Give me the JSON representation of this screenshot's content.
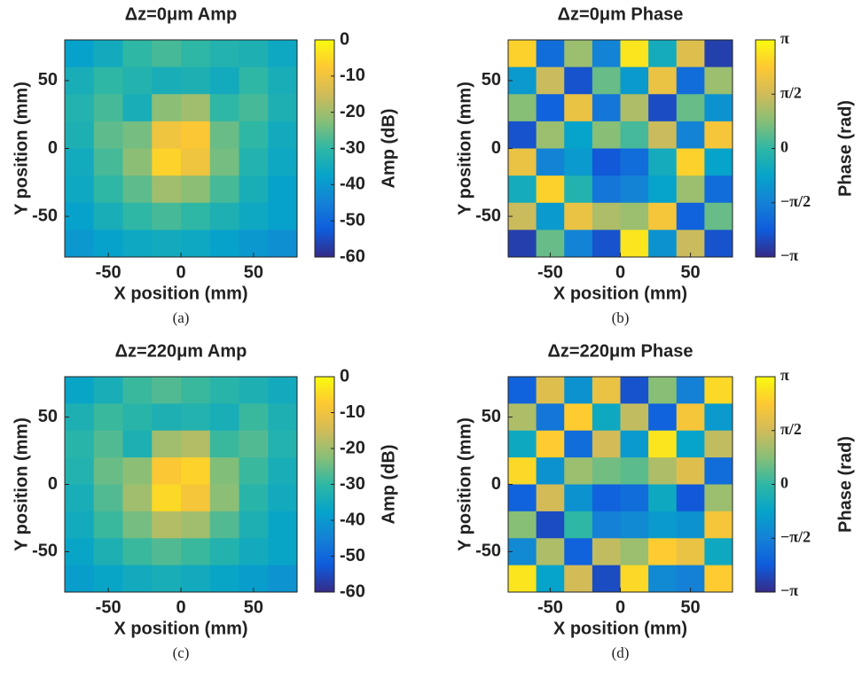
{
  "chart_data": [
    {
      "type": "heatmap",
      "title": "Δz=0μm Amp",
      "caption": "(a)",
      "xlabel": "X position (mm)",
      "ylabel": "Y position (mm)",
      "zlabel": "Amp (dB)",
      "xlim": [
        -80,
        80
      ],
      "ylim": [
        -80,
        80
      ],
      "xticks": [
        -50,
        0,
        50
      ],
      "yticks": [
        -50,
        0,
        50
      ],
      "zlim": [
        -60,
        0
      ],
      "zticks": [
        0,
        -10,
        -20,
        -30,
        -40,
        -50,
        -60
      ],
      "colormap": [
        "#352a87",
        "#0f5cdd",
        "#1481d6",
        "#06a4ca",
        "#2eb7a4",
        "#87bf77",
        "#d1bb59",
        "#fec832",
        "#f9fb0e"
      ],
      "values": [
        [
          -38,
          -35,
          -30,
          -28,
          -30,
          -32,
          -33,
          -36
        ],
        [
          -34,
          -30,
          -32,
          -34,
          -33,
          -35,
          -30,
          -34
        ],
        [
          -32,
          -28,
          -34,
          -22,
          -20,
          -30,
          -28,
          -33
        ],
        [
          -33,
          -26,
          -24,
          -10,
          -8,
          -25,
          -30,
          -35
        ],
        [
          -35,
          -28,
          -22,
          -6,
          -10,
          -24,
          -32,
          -36
        ],
        [
          -36,
          -30,
          -26,
          -20,
          -22,
          -28,
          -34,
          -38
        ],
        [
          -38,
          -34,
          -30,
          -28,
          -30,
          -33,
          -36,
          -38
        ],
        [
          -40,
          -38,
          -36,
          -35,
          -36,
          -38,
          -40,
          -42
        ]
      ]
    },
    {
      "type": "heatmap",
      "title": "Δz=0μm Phase",
      "caption": "(b)",
      "xlabel": "X position (mm)",
      "ylabel": "Y position (mm)",
      "zlabel": "Phase (rad)",
      "xlim": [
        -80,
        80
      ],
      "ylim": [
        -80,
        80
      ],
      "xticks": [
        -50,
        0,
        50
      ],
      "yticks": [
        -50,
        0,
        50
      ],
      "zlim": [
        -3.1416,
        3.1416
      ],
      "zticks": [
        {
          "value": 3.1416,
          "label": "π"
        },
        {
          "value": 1.5708,
          "label": "π/2"
        },
        0,
        {
          "value": -1.5708,
          "label": "−π/2"
        },
        {
          "value": -3.1416,
          "label": "−π"
        }
      ],
      "colormap": [
        "#352a87",
        "#0f5cdd",
        "#1481d6",
        "#06a4ca",
        "#2eb7a4",
        "#87bf77",
        "#d1bb59",
        "#fec832",
        "#f9fb0e"
      ],
      "values": [
        [
          2.5,
          -2.0,
          1.0,
          -1.5,
          2.8,
          -0.5,
          1.8,
          -2.8
        ],
        [
          -1.0,
          1.5,
          -2.5,
          0.5,
          -1.0,
          2.0,
          -2.0,
          1.0
        ],
        [
          0.8,
          -2.2,
          2.0,
          -1.8,
          1.2,
          -2.6,
          0.5,
          -1.2
        ],
        [
          -2.5,
          1.0,
          -0.8,
          0.8,
          0.2,
          1.5,
          -1.5,
          2.2
        ],
        [
          2.0,
          -1.5,
          -1.0,
          -2.4,
          -2.0,
          -0.5,
          2.5,
          -0.8
        ],
        [
          -0.5,
          2.5,
          -0.2,
          -1.8,
          -1.5,
          -0.8,
          1.0,
          -2.0
        ],
        [
          1.5,
          -1.0,
          2.0,
          1.2,
          1.0,
          2.2,
          -2.2,
          0.5
        ],
        [
          -2.8,
          0.5,
          -1.5,
          -2.5,
          2.8,
          -1.2,
          1.5,
          -2.5
        ]
      ]
    },
    {
      "type": "heatmap",
      "title": "Δz=220μm Amp",
      "caption": "(c)",
      "xlabel": "X position (mm)",
      "ylabel": "Y position (mm)",
      "zlabel": "Amp (dB)",
      "xlim": [
        -80,
        80
      ],
      "ylim": [
        -80,
        80
      ],
      "xticks": [
        -50,
        0,
        50
      ],
      "yticks": [
        -50,
        0,
        50
      ],
      "zlim": [
        -60,
        0
      ],
      "zticks": [
        0,
        -10,
        -20,
        -30,
        -40,
        -50,
        -60
      ],
      "colormap": [
        "#352a87",
        "#0f5cdd",
        "#1481d6",
        "#06a4ca",
        "#2eb7a4",
        "#87bf77",
        "#d1bb59",
        "#fec832",
        "#f9fb0e"
      ],
      "values": [
        [
          -37,
          -34,
          -29,
          -27,
          -29,
          -31,
          -33,
          -35
        ],
        [
          -33,
          -29,
          -31,
          -33,
          -32,
          -34,
          -29,
          -33
        ],
        [
          -31,
          -27,
          -33,
          -20,
          -18,
          -29,
          -27,
          -32
        ],
        [
          -32,
          -25,
          -22,
          -8,
          -6,
          -23,
          -29,
          -34
        ],
        [
          -34,
          -27,
          -20,
          -5,
          -9,
          -22,
          -31,
          -35
        ],
        [
          -35,
          -29,
          -24,
          -18,
          -20,
          -27,
          -33,
          -37
        ],
        [
          -37,
          -33,
          -29,
          -27,
          -29,
          -32,
          -35,
          -37
        ],
        [
          -39,
          -37,
          -35,
          -34,
          -35,
          -37,
          -39,
          -41
        ]
      ]
    },
    {
      "type": "heatmap",
      "title": "Δz=220μm Phase",
      "caption": "(d)",
      "xlabel": "X position (mm)",
      "ylabel": "Y position (mm)",
      "zlabel": "Phase (rad)",
      "xlim": [
        -80,
        80
      ],
      "ylim": [
        -80,
        80
      ],
      "xticks": [
        -50,
        0,
        50
      ],
      "yticks": [
        -50,
        0,
        50
      ],
      "zlim": [
        -3.1416,
        3.1416
      ],
      "zticks": [
        {
          "value": 3.1416,
          "label": "π"
        },
        {
          "value": 1.5708,
          "label": "π/2"
        },
        0,
        {
          "value": -1.5708,
          "label": "−π/2"
        },
        {
          "value": -3.1416,
          "label": "−π"
        }
      ],
      "colormap": [
        "#352a87",
        "#0f5cdd",
        "#1481d6",
        "#06a4ca",
        "#2eb7a4",
        "#87bf77",
        "#d1bb59",
        "#fec832",
        "#f9fb0e"
      ],
      "values": [
        [
          -2.2,
          1.8,
          -1.2,
          2.0,
          -2.5,
          0.8,
          -1.6,
          2.6
        ],
        [
          1.2,
          -1.8,
          2.4,
          -0.6,
          1.4,
          -2.2,
          2.2,
          -1.0
        ],
        [
          -0.6,
          2.4,
          -2.0,
          1.6,
          -1.0,
          2.8,
          -0.8,
          1.4
        ],
        [
          2.6,
          -1.2,
          1.0,
          0.6,
          0.4,
          1.2,
          1.8,
          -2.0
        ],
        [
          -2.2,
          1.6,
          -1.2,
          -2.2,
          -2.0,
          -0.6,
          -2.4,
          1.0
        ],
        [
          0.8,
          -2.6,
          0.0,
          -1.6,
          -1.4,
          -1.0,
          -1.2,
          2.2
        ],
        [
          -1.4,
          1.2,
          -2.2,
          1.4,
          1.0,
          2.4,
          2.0,
          -0.6
        ],
        [
          2.8,
          -0.8,
          1.6,
          -2.6,
          2.6,
          -1.4,
          -1.6,
          2.4
        ]
      ]
    }
  ]
}
